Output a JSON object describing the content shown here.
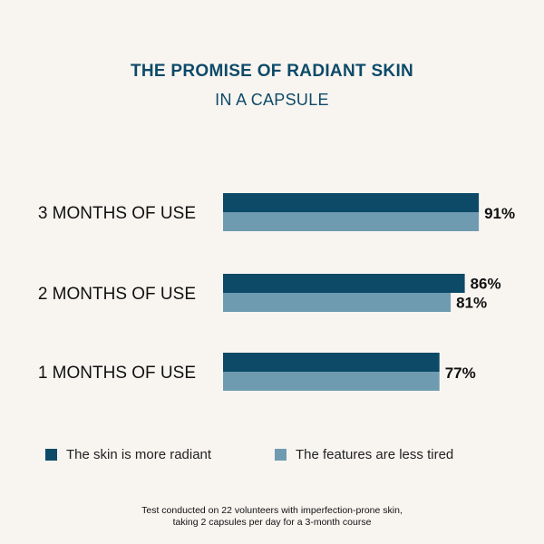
{
  "colors": {
    "primary": "#0d4a68",
    "secondary": "#6f9bb1",
    "title": "#0d4a68",
    "background": "#f8f5f1"
  },
  "chart_data": {
    "type": "bar",
    "orientation": "horizontal",
    "title": "THE PROMISE OF RADIANT SKIN",
    "subtitle": "IN A CAPSULE",
    "categories": [
      "3 MONTHS OF USE",
      "2 MONTHS OF USE",
      "1 MONTHS OF USE"
    ],
    "series": [
      {
        "name": "The skin is more radiant",
        "values": [
          91,
          86,
          77
        ],
        "color": "#0d4a68"
      },
      {
        "name": "The features are less tired",
        "values": [
          91,
          81,
          77
        ],
        "color": "#6f9bb1"
      }
    ],
    "data_labels": [
      [
        "91%"
      ],
      [
        "86%",
        "81%"
      ],
      [
        "77%"
      ]
    ],
    "xlim": [
      0,
      100
    ],
    "grid": false,
    "legend_position": "bottom"
  },
  "legend": {
    "items": [
      "The skin is more radiant",
      "The features are less tired"
    ]
  },
  "footnote": {
    "line1": "Test conducted on 22 volunteers with imperfection-prone skin,",
    "line2": "taking 2 capsules per day for a 3-month course"
  }
}
